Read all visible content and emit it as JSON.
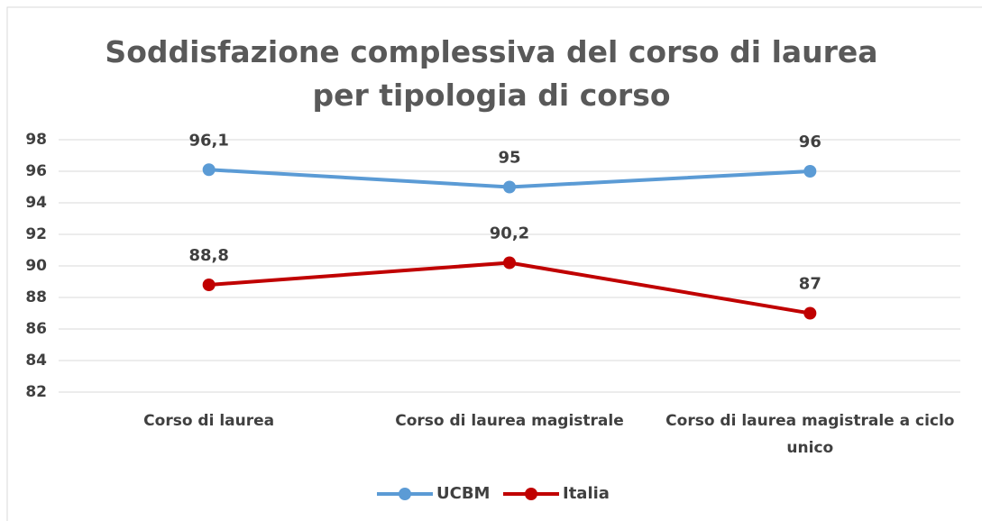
{
  "chart_data": {
    "type": "line",
    "title": "Soddisfazione complessiva del corso di laurea per tipologia di corso",
    "categories": [
      "Corso di laurea",
      "Corso di laurea magistrale",
      "Corso di laurea magistrale a ciclo unico"
    ],
    "series": [
      {
        "name": "UCBM",
        "color": "#5b9bd5",
        "values": [
          96.1,
          95,
          96
        ],
        "value_labels": [
          "96,1",
          "95",
          "96"
        ]
      },
      {
        "name": "Italia",
        "color": "#c00000",
        "values": [
          88.8,
          90.2,
          87
        ],
        "value_labels": [
          "88,8",
          "90,2",
          "87"
        ]
      }
    ],
    "ylim": [
      82,
      98
    ],
    "yticks": [
      82,
      84,
      86,
      88,
      90,
      92,
      94,
      96,
      98
    ],
    "grid": true,
    "legend": "bottom"
  }
}
